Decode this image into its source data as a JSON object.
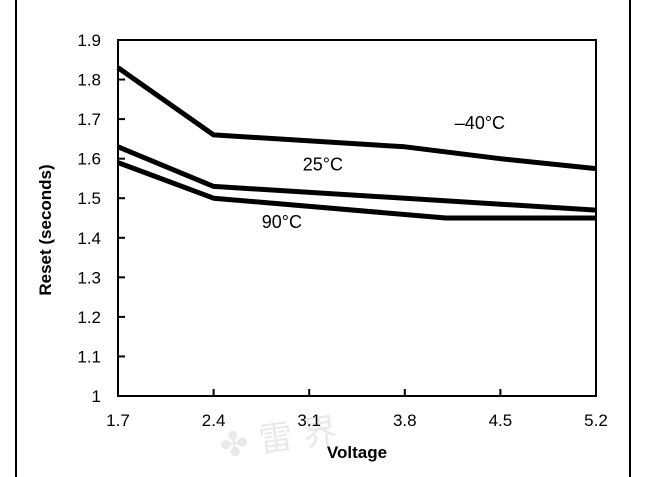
{
  "chart_data": {
    "type": "line",
    "title": "",
    "xlabel": "Voltage",
    "ylabel": "Reset (seconds)",
    "x_ticks": [
      "1.7",
      "2.4",
      "3.1",
      "3.8",
      "4.5",
      "5.2"
    ],
    "y_ticks": [
      "1",
      "1.1",
      "1.2",
      "1.3",
      "1.4",
      "1.5",
      "1.6",
      "1.7",
      "1.8",
      "1.9"
    ],
    "xlim": [
      1.7,
      5.2
    ],
    "ylim": [
      1.0,
      1.9
    ],
    "grid": false,
    "series": [
      {
        "name": "–40°C",
        "x": [
          1.7,
          2.4,
          3.8,
          4.5,
          5.2
        ],
        "y": [
          1.83,
          1.66,
          1.63,
          1.6,
          1.575
        ]
      },
      {
        "name": "25°C",
        "x": [
          1.7,
          2.4,
          5.2
        ],
        "y": [
          1.63,
          1.53,
          1.47
        ]
      },
      {
        "name": "90°C",
        "x": [
          1.7,
          2.4,
          4.1,
          5.2
        ],
        "y": [
          1.59,
          1.5,
          1.45,
          1.45
        ]
      }
    ],
    "label_positions": [
      {
        "series": 0,
        "x": 4.35,
        "y": 1.675
      },
      {
        "series": 1,
        "x": 3.2,
        "y": 1.57
      },
      {
        "series": 2,
        "x": 2.9,
        "y": 1.425
      }
    ]
  }
}
